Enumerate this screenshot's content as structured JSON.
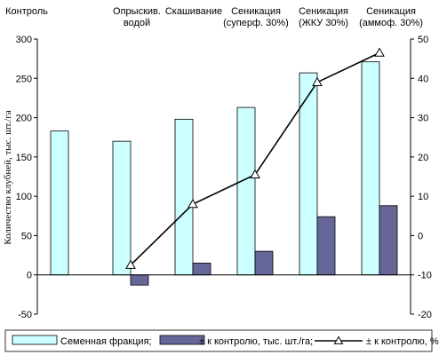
{
  "chart_data": {
    "type": "bar",
    "categories": [
      [
        "Контроль"
      ],
      [
        "Опрыскив.",
        "водой"
      ],
      [
        "Скашивание"
      ],
      [
        "Сеникация",
        "(суперф. 30%)"
      ],
      [
        "Сеникация",
        "(ЖКУ 30%)"
      ],
      [
        "Сеникация",
        "(аммоф. 30%)"
      ]
    ],
    "series": [
      {
        "name": "Семенная фракция;",
        "axis": "left",
        "type": "bar",
        "color": "#ccffff",
        "values": [
          183,
          170,
          198,
          213,
          257,
          271
        ]
      },
      {
        "name": "± к контролю, тыс. шт./га;",
        "axis": "left",
        "type": "bar",
        "color": "#666699",
        "values": [
          null,
          -13,
          15,
          30,
          74,
          88
        ]
      },
      {
        "name": "± к контролю, %",
        "axis": "right",
        "type": "line",
        "marker": "triangle",
        "values": [
          null,
          -7.5,
          8,
          15.5,
          39,
          46.5
        ]
      }
    ],
    "ylabel": "Количество клубней, тыс. шт./га",
    "ylim_left": [
      -50,
      300
    ],
    "ylim_right": [
      -20,
      50
    ],
    "yticks_left": [
      "-50",
      "0",
      "50",
      "100",
      "150",
      "200",
      "250",
      "300"
    ],
    "yticks_right": [
      "-20",
      "-10",
      "0",
      "10",
      "20",
      "30",
      "40",
      "50"
    ],
    "legend_position": "bottom",
    "grid": false
  }
}
